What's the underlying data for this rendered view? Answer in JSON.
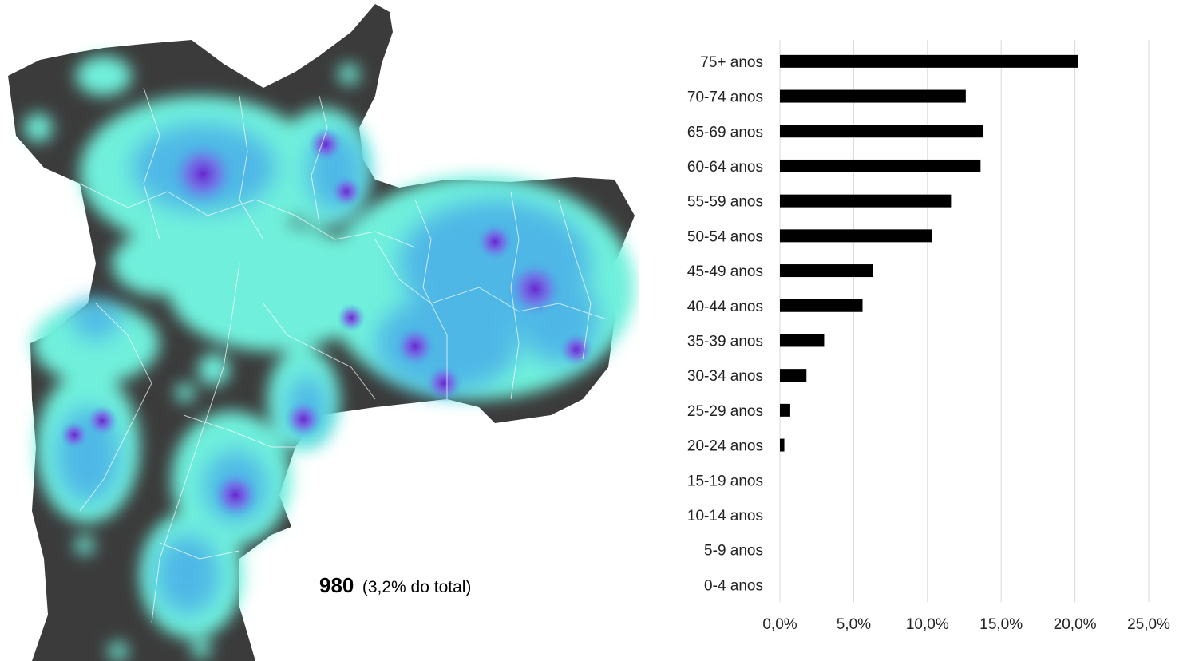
{
  "map": {
    "total_count": "980",
    "total_share": "(3,2% do total)",
    "colors": {
      "background": "#3b3b3b",
      "heat_low": "#6ff0dc",
      "heat_mid": "#4aaee8",
      "heat_high": "#6a2fd6",
      "border": "#ffffff"
    }
  },
  "chart_data": {
    "type": "bar",
    "orientation": "horizontal",
    "categories": [
      "75+ anos",
      "70-74 anos",
      "65-69 anos",
      "60-64 anos",
      "55-59 anos",
      "50-54 anos",
      "45-49 anos",
      "40-44 anos",
      "35-39 anos",
      "30-34 anos",
      "25-29 anos",
      "20-24 anos",
      "15-19 anos",
      "10-14 anos",
      "5-9 anos",
      "0-4 anos"
    ],
    "values": [
      20.2,
      12.6,
      13.8,
      13.6,
      11.6,
      10.3,
      6.3,
      5.6,
      3.0,
      1.8,
      0.7,
      0.3,
      0,
      0,
      0,
      0
    ],
    "xlim": [
      0,
      25
    ],
    "x_ticks": [
      0,
      5,
      10,
      15,
      20,
      25
    ],
    "x_tick_labels": [
      "0,0%",
      "5,0%",
      "10,0%",
      "15,0%",
      "20,0%",
      "25,0%"
    ],
    "grid": true,
    "bar_color": "#000000",
    "grid_color": "#d9d9d9"
  }
}
